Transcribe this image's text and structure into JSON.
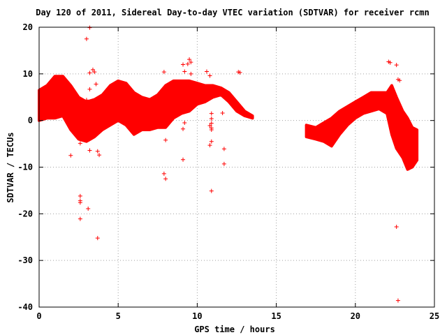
{
  "chart_data": {
    "type": "scatter",
    "title": "Day 120 of 2011, Sidereal Day-to-day VTEC variation (SDTVAR) for receiver rcmn",
    "xlabel": "GPS time / hours",
    "ylabel": "SDTVAR / TECUs",
    "xlim": [
      0,
      25
    ],
    "ylim": [
      -40,
      20
    ],
    "x_ticks": [
      0,
      5,
      10,
      15,
      20,
      25
    ],
    "y_ticks": [
      -40,
      -30,
      -20,
      -10,
      0,
      10,
      20
    ],
    "x_tick_labels": [
      "0",
      "5",
      "10",
      "15",
      "20",
      "25"
    ],
    "y_tick_labels": [
      "-40",
      "-30",
      "-20",
      "-10",
      "0",
      "10",
      "20"
    ],
    "grid": true,
    "legend": "none",
    "marker": "+",
    "marker_color": "#ff0000",
    "bands": [
      {
        "x": [
          0.0,
          0.5,
          1.0,
          1.5,
          2.0,
          2.5,
          3.0,
          3.5,
          4.0,
          4.5,
          5.0,
          5.5,
          6.0,
          6.5,
          7.0,
          7.5,
          8.0,
          8.5,
          9.0,
          9.5,
          10.0,
          10.5,
          11.0,
          11.5,
          12.0,
          12.5,
          13.0,
          13.5
        ],
        "low": [
          0.0,
          0.5,
          0.5,
          1.0,
          -2.0,
          -4.0,
          -4.5,
          -3.5,
          -2.0,
          -1.0,
          0.0,
          -1.0,
          -3.0,
          -2.0,
          -2.0,
          -1.5,
          -1.5,
          0.5,
          1.5,
          2.0,
          3.5,
          4.0,
          5.0,
          5.5,
          4.0,
          2.0,
          1.0,
          0.5
        ],
        "high": [
          6.5,
          7.5,
          9.5,
          9.5,
          7.5,
          5.0,
          4.0,
          4.5,
          5.5,
          7.5,
          8.5,
          8.0,
          6.0,
          5.0,
          4.5,
          5.5,
          7.5,
          8.5,
          8.5,
          8.5,
          8.0,
          7.5,
          7.5,
          7.0,
          6.0,
          4.0,
          2.0,
          1.0
        ]
      },
      {
        "x": [
          16.9,
          17.5,
          18.0,
          18.5,
          19.0,
          19.5,
          20.0,
          20.5,
          21.0,
          21.5,
          22.0,
          22.3,
          22.6,
          23.0,
          23.3,
          23.6,
          23.9
        ],
        "low": [
          -3.5,
          -4.0,
          -4.5,
          -5.5,
          -3.0,
          -1.0,
          0.5,
          1.5,
          2.0,
          2.5,
          1.5,
          -3.0,
          -6.0,
          -8.0,
          -10.5,
          -10.0,
          -8.5
        ],
        "high": [
          -1.0,
          -1.5,
          -0.5,
          0.5,
          2.0,
          3.0,
          4.0,
          5.0,
          6.0,
          6.0,
          6.0,
          7.5,
          5.0,
          2.0,
          0.5,
          -1.5,
          -2.0
        ]
      }
    ],
    "outliers": [
      {
        "x": 0.1,
        "y": 0.5
      },
      {
        "x": 2.0,
        "y": -7.5
      },
      {
        "x": 2.6,
        "y": -4.9
      },
      {
        "x": 2.6,
        "y": -16.2
      },
      {
        "x": 2.6,
        "y": -17.2
      },
      {
        "x": 2.6,
        "y": -17.6
      },
      {
        "x": 2.6,
        "y": -21.1
      },
      {
        "x": 3.0,
        "y": 4.4
      },
      {
        "x": 3.0,
        "y": 17.5
      },
      {
        "x": 3.1,
        "y": -18.9
      },
      {
        "x": 3.2,
        "y": 19.9
      },
      {
        "x": 3.2,
        "y": 10.2
      },
      {
        "x": 3.2,
        "y": 6.7
      },
      {
        "x": 3.2,
        "y": -6.4
      },
      {
        "x": 3.4,
        "y": 10.9
      },
      {
        "x": 3.5,
        "y": 10.4
      },
      {
        "x": 3.6,
        "y": 7.8
      },
      {
        "x": 3.7,
        "y": -6.6
      },
      {
        "x": 3.7,
        "y": -25.2
      },
      {
        "x": 3.8,
        "y": -7.4
      },
      {
        "x": 7.9,
        "y": 10.4
      },
      {
        "x": 7.9,
        "y": -11.4
      },
      {
        "x": 8.0,
        "y": -12.5
      },
      {
        "x": 8.0,
        "y": -4.2
      },
      {
        "x": 9.1,
        "y": -8.4
      },
      {
        "x": 9.1,
        "y": -1.8
      },
      {
        "x": 9.2,
        "y": -0.5
      },
      {
        "x": 9.5,
        "y": 13.1
      },
      {
        "x": 9.4,
        "y": 12.1
      },
      {
        "x": 9.1,
        "y": 12.0
      },
      {
        "x": 9.6,
        "y": 12.5
      },
      {
        "x": 9.2,
        "y": 10.5
      },
      {
        "x": 9.6,
        "y": 10.0
      },
      {
        "x": 10.6,
        "y": 10.5
      },
      {
        "x": 10.8,
        "y": 9.6
      },
      {
        "x": 10.8,
        "y": -1.1
      },
      {
        "x": 10.8,
        "y": -5.3
      },
      {
        "x": 10.9,
        "y": -4.5
      },
      {
        "x": 10.9,
        "y": -2.0
      },
      {
        "x": 10.9,
        "y": -1.6
      },
      {
        "x": 10.9,
        "y": -0.6
      },
      {
        "x": 10.9,
        "y": 0.4
      },
      {
        "x": 10.9,
        "y": 1.5
      },
      {
        "x": 10.9,
        "y": -15.1
      },
      {
        "x": 11.6,
        "y": 1.6
      },
      {
        "x": 11.7,
        "y": -6.1
      },
      {
        "x": 11.7,
        "y": -9.3
      },
      {
        "x": 12.6,
        "y": 10.4
      },
      {
        "x": 12.7,
        "y": 10.3
      },
      {
        "x": 22.1,
        "y": 12.6
      },
      {
        "x": 22.2,
        "y": 12.4
      },
      {
        "x": 22.6,
        "y": 11.9
      },
      {
        "x": 22.7,
        "y": 8.8
      },
      {
        "x": 22.8,
        "y": 8.6
      },
      {
        "x": 22.6,
        "y": -22.8
      },
      {
        "x": 22.7,
        "y": -38.6
      }
    ]
  }
}
